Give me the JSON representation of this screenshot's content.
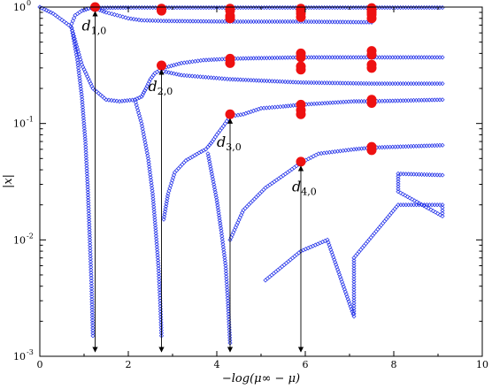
{
  "chart_data": {
    "type": "scatter",
    "title": "",
    "xlabel": "−log(μ∞ − μ)",
    "ylabel": "|x|",
    "xlim": [
      0,
      10
    ],
    "ylim": [
      0.001,
      1
    ],
    "yscale": "log",
    "grid": false,
    "legend": "none",
    "x_ticks": [
      0,
      2,
      4,
      6,
      8,
      10
    ],
    "y_ticks": [
      {
        "value": 0.001,
        "base": "10",
        "exp": "-3"
      },
      {
        "value": 0.01,
        "base": "10",
        "exp": "-2"
      },
      {
        "value": 0.1,
        "base": "10",
        "exp": "-1"
      },
      {
        "value": 1,
        "base": "10",
        "exp": "0"
      }
    ],
    "colors": {
      "series": "#1f2ee8",
      "highlight": "#ee1111",
      "annotation": "#000000"
    },
    "series": [
      {
        "points": [
          [
            0.0,
            1.0
          ],
          [
            0.3,
            0.88
          ],
          [
            0.55,
            0.75
          ],
          [
            0.7,
            0.68
          ],
          [
            0.72,
            0.72
          ],
          [
            0.8,
            0.85
          ],
          [
            0.95,
            0.93
          ],
          [
            1.1,
            0.97
          ],
          [
            1.3,
            0.985
          ],
          [
            2.0,
            0.99
          ],
          [
            2.8,
            0.99
          ],
          [
            4.3,
            0.99
          ],
          [
            5.9,
            0.99
          ],
          [
            7.5,
            0.99
          ],
          [
            9.1,
            0.99
          ]
        ]
      },
      {
        "points": [
          [
            0.72,
            0.66
          ],
          [
            0.85,
            0.35
          ],
          [
            0.95,
            0.17
          ],
          [
            1.03,
            0.07
          ],
          [
            1.08,
            0.03
          ],
          [
            1.13,
            0.01
          ],
          [
            1.17,
            0.004
          ],
          [
            1.2,
            0.0015
          ]
        ]
      },
      {
        "points": [
          [
            1.3,
            0.96
          ],
          [
            1.5,
            0.9
          ],
          [
            1.75,
            0.85
          ],
          [
            2.0,
            0.8
          ],
          [
            2.3,
            0.77
          ],
          [
            2.8,
            0.76
          ],
          [
            4.3,
            0.75
          ],
          [
            5.9,
            0.75
          ],
          [
            7.5,
            0.74
          ]
        ]
      },
      {
        "points": [
          [
            0.72,
            0.66
          ],
          [
            0.95,
            0.32
          ],
          [
            1.2,
            0.2
          ],
          [
            1.5,
            0.16
          ],
          [
            1.8,
            0.155
          ],
          [
            2.15,
            0.16
          ],
          [
            2.3,
            0.17
          ],
          [
            2.4,
            0.2
          ],
          [
            2.5,
            0.24
          ],
          [
            2.6,
            0.27
          ],
          [
            2.8,
            0.3
          ],
          [
            3.2,
            0.33
          ],
          [
            3.7,
            0.35
          ],
          [
            4.3,
            0.36
          ],
          [
            5.9,
            0.37
          ],
          [
            7.5,
            0.37
          ],
          [
            9.1,
            0.37
          ]
        ]
      },
      {
        "points": [
          [
            2.15,
            0.16
          ],
          [
            2.3,
            0.1
          ],
          [
            2.45,
            0.05
          ],
          [
            2.55,
            0.025
          ],
          [
            2.62,
            0.012
          ],
          [
            2.68,
            0.006
          ],
          [
            2.72,
            0.003
          ],
          [
            2.75,
            0.0015
          ]
        ]
      },
      {
        "points": [
          [
            2.8,
            0.28
          ],
          [
            3.2,
            0.26
          ],
          [
            4.3,
            0.24
          ],
          [
            5.9,
            0.225
          ],
          [
            7.5,
            0.22
          ],
          [
            9.1,
            0.22
          ]
        ]
      },
      {
        "points": [
          [
            2.8,
            0.015
          ],
          [
            2.9,
            0.025
          ],
          [
            3.05,
            0.038
          ],
          [
            3.3,
            0.048
          ],
          [
            3.6,
            0.056
          ],
          [
            3.75,
            0.06
          ],
          [
            3.8,
            0.063
          ],
          [
            3.9,
            0.07
          ],
          [
            4.0,
            0.08
          ],
          [
            4.15,
            0.095
          ],
          [
            4.3,
            0.115
          ],
          [
            4.6,
            0.12
          ],
          [
            5.0,
            0.135
          ],
          [
            5.5,
            0.14
          ],
          [
            5.9,
            0.145
          ],
          [
            6.5,
            0.15
          ],
          [
            7.1,
            0.155
          ],
          [
            7.5,
            0.155
          ],
          [
            9.1,
            0.16
          ]
        ]
      },
      {
        "points": [
          [
            3.8,
            0.055
          ],
          [
            3.9,
            0.035
          ],
          [
            4.0,
            0.022
          ],
          [
            4.1,
            0.012
          ],
          [
            4.2,
            0.006
          ],
          [
            4.25,
            0.003
          ],
          [
            4.3,
            0.0013
          ]
        ]
      },
      {
        "points": [
          [
            4.3,
            0.01
          ],
          [
            4.6,
            0.018
          ],
          [
            5.1,
            0.028
          ],
          [
            5.6,
            0.038
          ],
          [
            5.9,
            0.046
          ],
          [
            6.3,
            0.055
          ],
          [
            7.1,
            0.06
          ],
          [
            7.5,
            0.062
          ],
          [
            9.1,
            0.065
          ]
        ]
      },
      {
        "points": [
          [
            5.1,
            0.0045
          ],
          [
            5.9,
            0.008
          ],
          [
            6.5,
            0.01
          ],
          [
            7.1,
            0.0022
          ],
          [
            7.1,
            0.007
          ],
          [
            8.1,
            0.02
          ],
          [
            9.1,
            0.02
          ],
          [
            9.1,
            0.016
          ],
          [
            8.1,
            0.026
          ],
          [
            8.1,
            0.037
          ],
          [
            9.1,
            0.036
          ]
        ]
      },
      {
        "name_hidden": true,
        "points": [
          [
            1.25,
            1.0
          ],
          [
            2.75,
            0.97
          ],
          [
            2.75,
            0.93
          ],
          [
            4.3,
            0.97
          ],
          [
            4.3,
            0.93
          ],
          [
            4.3,
            0.84
          ],
          [
            4.3,
            0.8
          ],
          [
            5.9,
            0.97
          ],
          [
            5.9,
            0.93
          ],
          [
            5.9,
            0.88
          ],
          [
            5.9,
            0.82
          ],
          [
            7.5,
            0.98
          ],
          [
            7.5,
            0.94
          ],
          [
            7.5,
            0.9
          ],
          [
            7.5,
            0.86
          ],
          [
            7.5,
            0.8
          ],
          [
            2.75,
            0.315
          ],
          [
            4.3,
            0.36
          ],
          [
            4.3,
            0.33
          ],
          [
            5.9,
            0.4
          ],
          [
            5.9,
            0.37
          ],
          [
            5.9,
            0.31
          ],
          [
            5.9,
            0.29
          ],
          [
            7.5,
            0.42
          ],
          [
            7.5,
            0.39
          ],
          [
            7.5,
            0.32
          ],
          [
            7.5,
            0.3
          ],
          [
            4.3,
            0.12
          ],
          [
            5.9,
            0.145
          ],
          [
            5.9,
            0.13
          ],
          [
            5.9,
            0.12
          ],
          [
            7.5,
            0.16
          ],
          [
            7.5,
            0.15
          ],
          [
            5.9,
            0.047
          ],
          [
            7.5,
            0.063
          ],
          [
            7.5,
            0.059
          ]
        ]
      }
    ],
    "highlight_index": 10,
    "annotations": [
      {
        "base": "d",
        "sub": "1,0",
        "x": 1.25,
        "y_top": 1.0,
        "label_x": 0.95,
        "label_y": 0.63
      },
      {
        "base": "d",
        "sub": "2,0",
        "x": 2.75,
        "y_top": 0.315,
        "label_x": 2.45,
        "label_y": 0.19
      },
      {
        "base": "d",
        "sub": "3,0",
        "x": 4.3,
        "y_top": 0.12,
        "label_x": 4.0,
        "label_y": 0.063
      },
      {
        "base": "d",
        "sub": "4,0",
        "x": 5.9,
        "y_top": 0.047,
        "label_x": 5.7,
        "label_y": 0.026
      }
    ]
  }
}
